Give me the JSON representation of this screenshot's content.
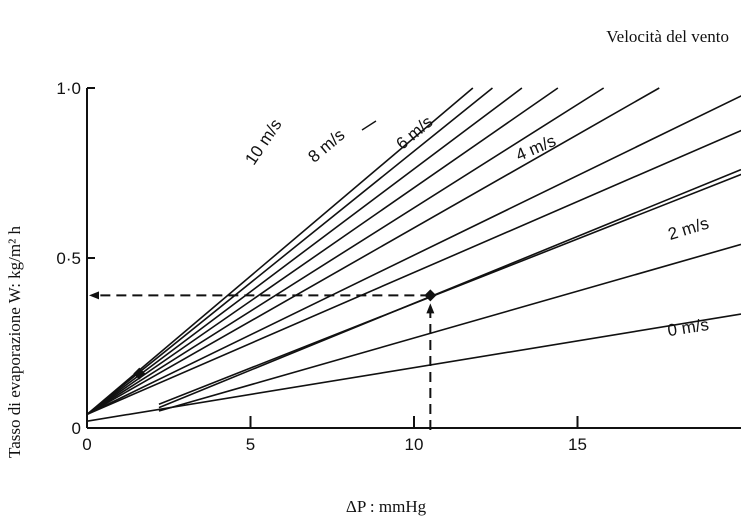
{
  "chart_data": {
    "type": "line",
    "title": "Velocità del vento",
    "xlabel": "ΔP : mmHg",
    "ylabel": "Tasso di evaporazione W: kg/m² h",
    "xlim": [
      0,
      20
    ],
    "ylim": [
      0,
      1.0
    ],
    "x_ticks": [
      "0",
      "5",
      "10",
      "15"
    ],
    "y_ticks": [
      "0",
      "0·5",
      "1·0"
    ],
    "grid": false,
    "series": [
      {
        "name": "10 m/s",
        "x": [
          0,
          11.8
        ],
        "y": [
          0.04,
          1.0
        ]
      },
      {
        "x": [
          0,
          12.4
        ],
        "y": [
          0.04,
          1.0
        ]
      },
      {
        "name": "8 m/s",
        "x": [
          0,
          13.3
        ],
        "y": [
          0.04,
          1.0
        ]
      },
      {
        "x": [
          0,
          14.4
        ],
        "y": [
          0.04,
          1.0
        ]
      },
      {
        "name": "6 m/s",
        "x": [
          0,
          15.8
        ],
        "y": [
          0.04,
          1.0
        ]
      },
      {
        "x": [
          0,
          17.5
        ],
        "y": [
          0.04,
          1.0
        ]
      },
      {
        "name": "4 m/s",
        "x": [
          0,
          20.5
        ],
        "y": [
          0.04,
          1.0
        ]
      },
      {
        "x": [
          0,
          23.0
        ],
        "y": [
          0.04,
          1.0
        ]
      },
      {
        "name": "2 m/s",
        "x": [
          2.2,
          26.7
        ],
        "y": [
          0.07,
          1.0
        ]
      },
      {
        "x": [
          2.2,
          20
        ],
        "y": [
          0.06,
          0.76
        ]
      },
      {
        "x": [
          2.2,
          20
        ],
        "y": [
          0.05,
          0.54
        ]
      },
      {
        "name": "0 m/s",
        "x": [
          0,
          20
        ],
        "y": [
          0.02,
          0.335
        ]
      }
    ],
    "annotations": [
      {
        "type": "point",
        "x": 1.6,
        "y": 0.16
      },
      {
        "type": "point",
        "x": 10.5,
        "y": 0.39
      },
      {
        "type": "dashed-guide",
        "x": 10.5,
        "y": 0.39
      }
    ]
  }
}
